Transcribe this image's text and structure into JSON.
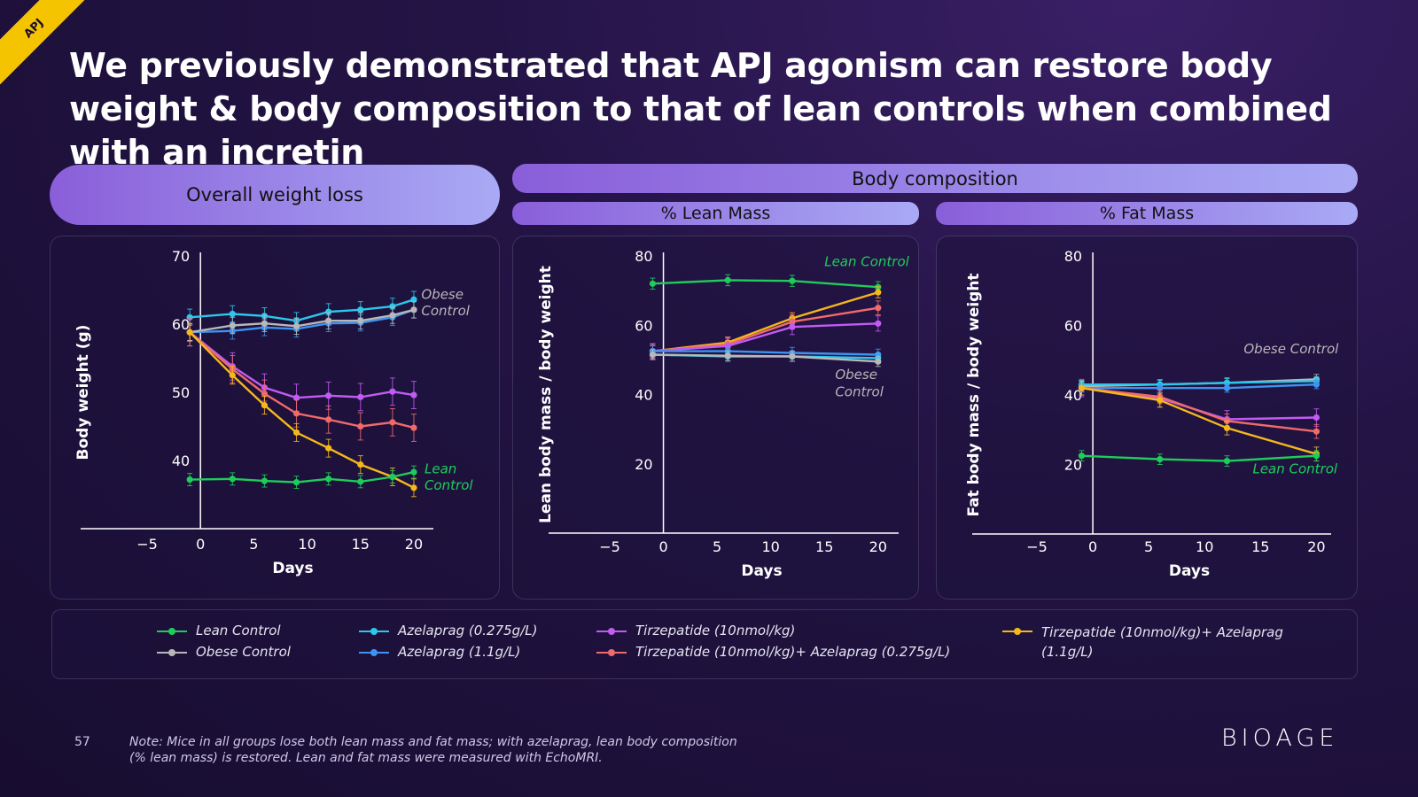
{
  "tag": "APJ",
  "title": "We previously demonstrated that APJ agonism can restore body weight & body composition to that of lean controls when combined with an incretin",
  "headers": {
    "overall": "Overall weight loss",
    "body_comp": "Body composition",
    "lean": "% Lean Mass",
    "fat": "% Fat Mass"
  },
  "colors": {
    "lean_control": "#1fcc5a",
    "obese_control": "#b8b8b8",
    "azela_low": "#2bc8ea",
    "azela_high": "#3f93f0",
    "tirz": "#c25bf2",
    "tirz_azela_low": "#f06a6a",
    "tirz_azela_high": "#f5b81c"
  },
  "legend": [
    {
      "key": "lean_control",
      "label": "Lean Control"
    },
    {
      "key": "obese_control",
      "label": "Obese Control"
    },
    {
      "key": "azela_low",
      "label": "Azelaprag (0.275g/L)"
    },
    {
      "key": "azela_high",
      "label": "Azelaprag (1.1g/L)"
    },
    {
      "key": "tirz",
      "label": "Tirzepatide (10nmol/kg)"
    },
    {
      "key": "tirz_azela_low",
      "label": "Tirzepatide (10nmol/kg)+ Azelaprag (0.275g/L)"
    },
    {
      "key": "tirz_azela_high",
      "label": "Tirzepatide (10nmol/kg)+ Azelaprag (1.1g/L)"
    }
  ],
  "chart_data": [
    {
      "type": "line",
      "xlabel": "Days",
      "ylabel": "Body weight (g)",
      "xlim": [
        -5,
        21
      ],
      "ylim": [
        30,
        70
      ],
      "xticks": [
        "−5",
        "0",
        "5",
        "10",
        "15",
        "20"
      ],
      "xtick_values": [
        -5,
        0,
        5,
        10,
        15,
        20
      ],
      "yticks": [
        "40",
        "50",
        "60",
        "70"
      ],
      "ytick_values": [
        40,
        50,
        60,
        70
      ],
      "annotations": [
        {
          "text": "Obese",
          "x": 20.7,
          "y": 63.7,
          "key": "obese_control"
        },
        {
          "text": "Control",
          "x": 20.7,
          "y": 61.3,
          "key": "obese_control"
        },
        {
          "text": "Lean",
          "x": 21,
          "y": 38.1,
          "key": "lean_control"
        },
        {
          "text": "Control",
          "x": 21,
          "y": 35.7,
          "key": "lean_control"
        }
      ],
      "series": [
        {
          "key": "azela_low",
          "x": [
            -1,
            3,
            6,
            9,
            12,
            15,
            18,
            20
          ],
          "y": [
            61,
            61.5,
            61.2,
            60.5,
            61.8,
            62.1,
            62.6,
            63.6
          ],
          "err": 1.2
        },
        {
          "key": "azela_high",
          "x": [
            -1,
            3,
            6,
            9,
            12,
            15,
            18,
            20
          ],
          "y": [
            58.8,
            59,
            59.5,
            59.3,
            60.1,
            60.2,
            61,
            62.1
          ],
          "err": 1.2
        },
        {
          "key": "obese_control",
          "x": [
            -1,
            3,
            6,
            9,
            12,
            15,
            18,
            20
          ],
          "y": [
            58.8,
            59.8,
            60.1,
            59.7,
            60.5,
            60.5,
            61.3,
            62.1
          ],
          "err": 1.2
        },
        {
          "key": "tirz",
          "x": [
            -1,
            3,
            6,
            9,
            12,
            15,
            18,
            20
          ],
          "y": [
            58.8,
            53.8,
            50.7,
            49.2,
            49.5,
            49.3,
            50.1,
            49.6
          ],
          "err": 2.0
        },
        {
          "key": "tirz_azela_low",
          "x": [
            -1,
            3,
            6,
            9,
            12,
            15,
            18,
            20
          ],
          "y": [
            58.8,
            53.4,
            49.8,
            46.9,
            46,
            45,
            45.6,
            44.8
          ],
          "err": 2.0
        },
        {
          "key": "tirz_azela_high",
          "x": [
            -1,
            3,
            6,
            9,
            12,
            15,
            18,
            20
          ],
          "y": [
            58.8,
            52.5,
            48.1,
            44.1,
            41.8,
            39.4,
            37.6,
            36
          ],
          "err": 1.3
        },
        {
          "key": "lean_control",
          "x": [
            -1,
            3,
            6,
            9,
            12,
            15,
            18,
            20
          ],
          "y": [
            37.2,
            37.3,
            37,
            36.8,
            37.3,
            36.9,
            37.6,
            38.3
          ],
          "err": 0.9
        }
      ]
    },
    {
      "type": "line",
      "xlabel": "Days",
      "ylabel": "Lean body mass / body weight",
      "xlim": [
        -5,
        22
      ],
      "ylim": [
        0,
        80
      ],
      "xticks": [
        "−5",
        "0",
        "5",
        "10",
        "15",
        "20"
      ],
      "xtick_values": [
        -5,
        0,
        5,
        10,
        15,
        20
      ],
      "yticks": [
        "20",
        "40",
        "60",
        "80"
      ],
      "ytick_values": [
        20,
        40,
        60,
        80
      ],
      "annotations": [
        {
          "text": "Lean Control",
          "x": 15,
          "y": 77,
          "key": "lean_control"
        },
        {
          "text": "Obese",
          "x": 16,
          "y": 44.5,
          "key": "obese_control"
        },
        {
          "text": "Control",
          "x": 16,
          "y": 39.5,
          "key": "obese_control"
        }
      ],
      "series": [
        {
          "key": "lean_control",
          "x": [
            -1,
            6,
            12,
            20
          ],
          "y": [
            72,
            73,
            72.8,
            71
          ],
          "err": 1.6
        },
        {
          "key": "tirz_azela_high",
          "x": [
            -1,
            6,
            12,
            20
          ],
          "y": [
            52.5,
            55,
            62,
            69.5
          ],
          "err": 1.6
        },
        {
          "key": "tirz_azela_low",
          "x": [
            -1,
            6,
            12,
            20
          ],
          "y": [
            52.5,
            54.5,
            61,
            65
          ],
          "err": 2.0
        },
        {
          "key": "tirz",
          "x": [
            -1,
            6,
            12,
            20
          ],
          "y": [
            52.5,
            54,
            59.5,
            60.5
          ],
          "err": 2.2
        },
        {
          "key": "azela_high",
          "x": [
            -1,
            6,
            12,
            20
          ],
          "y": [
            52.5,
            52.5,
            52,
            51.5
          ],
          "err": 1.6
        },
        {
          "key": "azela_low",
          "x": [
            -1,
            6,
            12,
            20
          ],
          "y": [
            51.5,
            51,
            51,
            50.5
          ],
          "err": 1.4
        },
        {
          "key": "obese_control",
          "x": [
            -1,
            6,
            12,
            20
          ],
          "y": [
            51.5,
            51.2,
            51,
            49.5
          ],
          "err": 1.4
        }
      ]
    },
    {
      "type": "line",
      "xlabel": "Days",
      "ylabel": "Fat body mass / body weight",
      "xlim": [
        -5,
        21
      ],
      "ylim": [
        0,
        80
      ],
      "xticks": [
        "−5",
        "0",
        "5",
        "10",
        "15",
        "20"
      ],
      "xtick_values": [
        -5,
        0,
        5,
        10,
        15,
        20
      ],
      "yticks": [
        "20",
        "40",
        "60",
        "80"
      ],
      "ytick_values": [
        20,
        40,
        60,
        80
      ],
      "annotations": [
        {
          "text": "Obese Control",
          "x": 13.5,
          "y": 52,
          "key": "obese_control"
        },
        {
          "text": "Lean Control",
          "x": 14.3,
          "y": 17.5,
          "key": "lean_control"
        }
      ],
      "series": [
        {
          "key": "obese_control",
          "x": [
            -1,
            6,
            12,
            20
          ],
          "y": [
            42.5,
            43,
            43.5,
            44.5
          ],
          "err": 1.4
        },
        {
          "key": "azela_low",
          "x": [
            -1,
            6,
            12,
            20
          ],
          "y": [
            43,
            43,
            43.5,
            44
          ],
          "err": 1.2
        },
        {
          "key": "azela_high",
          "x": [
            -1,
            6,
            12,
            20
          ],
          "y": [
            42,
            42,
            42,
            43
          ],
          "err": 1.2
        },
        {
          "key": "tirz",
          "x": [
            -1,
            6,
            12,
            20
          ],
          "y": [
            42,
            39,
            33,
            33.5
          ],
          "err": 2.5
        },
        {
          "key": "tirz_azela_low",
          "x": [
            -1,
            6,
            12,
            20
          ],
          "y": [
            42,
            39.5,
            32.5,
            29.5
          ],
          "err": 2.0
        },
        {
          "key": "tirz_azela_high",
          "x": [
            -1,
            6,
            12,
            20
          ],
          "y": [
            42,
            38.5,
            30.5,
            23
          ],
          "err": 2.0
        },
        {
          "key": "lean_control",
          "x": [
            -1,
            6,
            12,
            20
          ],
          "y": [
            22.5,
            21.5,
            21,
            22.5
          ],
          "err": 1.5
        }
      ]
    }
  ],
  "footnote_number": "57",
  "footnote": "Note: Mice in all groups lose both lean mass and fat mass; with azelaprag, lean body composition (% lean mass) is restored. Lean and fat mass were measured with EchoMRI.",
  "logo": "BIOAGE"
}
